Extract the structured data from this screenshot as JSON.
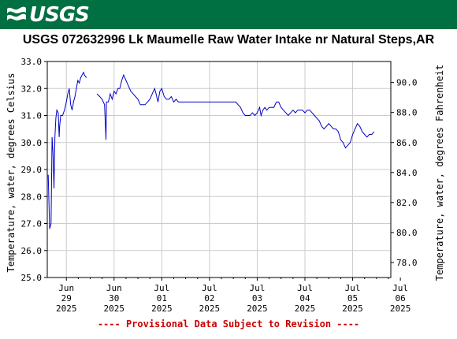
{
  "header": {
    "logo_text": "USGS",
    "logo_icon": "usgs-wave-icon",
    "banner_color": "#006f41"
  },
  "title": "USGS 072632996 Lk Maumelle Raw Water Intake nr Natural Steps,AR",
  "provisional_text": "---- Provisional Data Subject to Revision ----",
  "chart_data": {
    "type": "line",
    "title": "USGS 072632996 Lk Maumelle Raw Water Intake nr Natural Steps,AR",
    "ylabel": "Temperature, water, degrees Celsius",
    "y2label": "Temperature, water, degrees Fahrenheit",
    "ylim": [
      25.0,
      33.0
    ],
    "y2lim": [
      77.0,
      91.4
    ],
    "yticks": [
      "25.0",
      "26.0",
      "27.0",
      "28.0",
      "29.0",
      "30.0",
      "31.0",
      "32.0",
      "33.0"
    ],
    "y2ticks": [
      "78.0",
      "80.0",
      "82.0",
      "84.0",
      "86.0",
      "88.0",
      "90.0"
    ],
    "xlim_days": [
      28.6,
      35.8
    ],
    "xticks": [
      {
        "day": 29,
        "lines": [
          "Jun",
          "29",
          "2025"
        ]
      },
      {
        "day": 30,
        "lines": [
          "Jun",
          "30",
          "2025"
        ]
      },
      {
        "day": 31,
        "lines": [
          "Jul",
          "01",
          "2025"
        ]
      },
      {
        "day": 32,
        "lines": [
          "Jul",
          "02",
          "2025"
        ]
      },
      {
        "day": 33,
        "lines": [
          "Jul",
          "03",
          "2025"
        ]
      },
      {
        "day": 34,
        "lines": [
          "Jul",
          "04",
          "2025"
        ]
      },
      {
        "day": 35,
        "lines": [
          "Jul",
          "05",
          "2025"
        ]
      },
      {
        "day": 36,
        "lines": [
          "Jul",
          "06",
          "2025"
        ]
      }
    ],
    "grid": true,
    "line_color": "#0000cc",
    "series": [
      {
        "name": "",
        "segments": [
          [
            [
              28.62,
              28.8
            ],
            [
              28.65,
              26.8
            ],
            [
              28.68,
              27.0
            ],
            [
              28.7,
              30.2
            ],
            [
              28.72,
              29.6
            ],
            [
              28.74,
              28.3
            ],
            [
              28.76,
              30.2
            ],
            [
              28.78,
              30.9
            ],
            [
              28.8,
              31.2
            ],
            [
              28.83,
              31.1
            ],
            [
              28.85,
              30.2
            ],
            [
              28.86,
              30.6
            ],
            [
              28.88,
              31.0
            ],
            [
              28.92,
              31.0
            ],
            [
              28.96,
              31.2
            ],
            [
              29.0,
              31.5
            ],
            [
              29.03,
              31.8
            ],
            [
              29.06,
              32.0
            ],
            [
              29.09,
              31.4
            ],
            [
              29.12,
              31.2
            ],
            [
              29.15,
              31.5
            ],
            [
              29.18,
              31.7
            ],
            [
              29.21,
              32.0
            ],
            [
              29.24,
              32.3
            ],
            [
              29.27,
              32.2
            ],
            [
              29.3,
              32.4
            ],
            [
              29.33,
              32.5
            ],
            [
              29.36,
              32.6
            ],
            [
              29.38,
              32.5
            ],
            [
              29.42,
              32.4
            ]
          ],
          [
            [
              29.64,
              31.8
            ],
            [
              29.7,
              31.7
            ],
            [
              29.75,
              31.6
            ],
            [
              29.8,
              31.4
            ],
            [
              29.83,
              30.1
            ],
            [
              29.84,
              31.5
            ],
            [
              29.88,
              31.5
            ],
            [
              29.92,
              31.8
            ],
            [
              29.96,
              31.6
            ],
            [
              30.0,
              31.9
            ],
            [
              30.04,
              31.8
            ],
            [
              30.08,
              32.0
            ],
            [
              30.12,
              32.0
            ],
            [
              30.16,
              32.3
            ],
            [
              30.2,
              32.5
            ],
            [
              30.25,
              32.3
            ],
            [
              30.3,
              32.1
            ],
            [
              30.35,
              31.9
            ],
            [
              30.4,
              31.8
            ],
            [
              30.45,
              31.7
            ],
            [
              30.5,
              31.6
            ],
            [
              30.55,
              31.4
            ],
            [
              30.6,
              31.4
            ],
            [
              30.65,
              31.4
            ],
            [
              30.7,
              31.5
            ],
            [
              30.75,
              31.6
            ],
            [
              30.8,
              31.8
            ],
            [
              30.85,
              32.0
            ],
            [
              30.88,
              31.8
            ],
            [
              30.92,
              31.5
            ],
            [
              30.96,
              31.9
            ],
            [
              31.0,
              32.0
            ],
            [
              31.05,
              31.7
            ],
            [
              31.1,
              31.6
            ],
            [
              31.15,
              31.6
            ],
            [
              31.2,
              31.7
            ],
            [
              31.25,
              31.5
            ],
            [
              31.3,
              31.6
            ],
            [
              31.35,
              31.5
            ],
            [
              31.4,
              31.5
            ],
            [
              31.45,
              31.5
            ],
            [
              31.5,
              31.5
            ],
            [
              31.55,
              31.5
            ],
            [
              31.6,
              31.5
            ],
            [
              31.65,
              31.5
            ],
            [
              31.7,
              31.5
            ],
            [
              31.75,
              31.5
            ],
            [
              31.8,
              31.5
            ],
            [
              31.85,
              31.5
            ],
            [
              31.9,
              31.5
            ],
            [
              31.95,
              31.5
            ],
            [
              32.0,
              31.5
            ],
            [
              32.05,
              31.5
            ],
            [
              32.1,
              31.5
            ],
            [
              32.15,
              31.5
            ],
            [
              32.2,
              31.5
            ],
            [
              32.25,
              31.5
            ],
            [
              32.3,
              31.5
            ],
            [
              32.35,
              31.5
            ],
            [
              32.4,
              31.5
            ],
            [
              32.45,
              31.5
            ],
            [
              32.5,
              31.5
            ],
            [
              32.55,
              31.5
            ],
            [
              32.6,
              31.4
            ],
            [
              32.65,
              31.3
            ],
            [
              32.7,
              31.1
            ],
            [
              32.75,
              31.0
            ],
            [
              32.8,
              31.0
            ],
            [
              32.85,
              31.0
            ],
            [
              32.9,
              31.1
            ],
            [
              32.95,
              31.0
            ],
            [
              33.0,
              31.1
            ],
            [
              33.05,
              31.3
            ],
            [
              33.08,
              31.0
            ],
            [
              33.12,
              31.2
            ],
            [
              33.16,
              31.3
            ],
            [
              33.2,
              31.2
            ],
            [
              33.25,
              31.3
            ],
            [
              33.3,
              31.3
            ],
            [
              33.35,
              31.3
            ],
            [
              33.4,
              31.5
            ],
            [
              33.45,
              31.5
            ],
            [
              33.5,
              31.3
            ],
            [
              33.55,
              31.2
            ],
            [
              33.6,
              31.1
            ],
            [
              33.65,
              31.0
            ],
            [
              33.7,
              31.1
            ],
            [
              33.75,
              31.2
            ],
            [
              33.8,
              31.1
            ],
            [
              33.85,
              31.2
            ],
            [
              33.9,
              31.2
            ],
            [
              33.95,
              31.2
            ],
            [
              34.0,
              31.1
            ],
            [
              34.05,
              31.2
            ],
            [
              34.1,
              31.2
            ],
            [
              34.15,
              31.1
            ],
            [
              34.2,
              31.0
            ],
            [
              34.25,
              30.9
            ],
            [
              34.3,
              30.8
            ],
            [
              34.35,
              30.6
            ],
            [
              34.4,
              30.5
            ],
            [
              34.45,
              30.6
            ],
            [
              34.5,
              30.7
            ],
            [
              34.55,
              30.6
            ],
            [
              34.6,
              30.5
            ],
            [
              34.65,
              30.5
            ],
            [
              34.7,
              30.4
            ],
            [
              34.75,
              30.1
            ],
            [
              34.8,
              30.0
            ],
            [
              34.85,
              29.8
            ],
            [
              34.9,
              29.9
            ],
            [
              34.95,
              30.0
            ],
            [
              35.0,
              30.3
            ],
            [
              35.05,
              30.5
            ],
            [
              35.1,
              30.7
            ],
            [
              35.15,
              30.6
            ],
            [
              35.2,
              30.4
            ],
            [
              35.25,
              30.3
            ],
            [
              35.3,
              30.2
            ],
            [
              35.35,
              30.3
            ],
            [
              35.4,
              30.3
            ],
            [
              35.45,
              30.4
            ]
          ]
        ]
      }
    ]
  }
}
